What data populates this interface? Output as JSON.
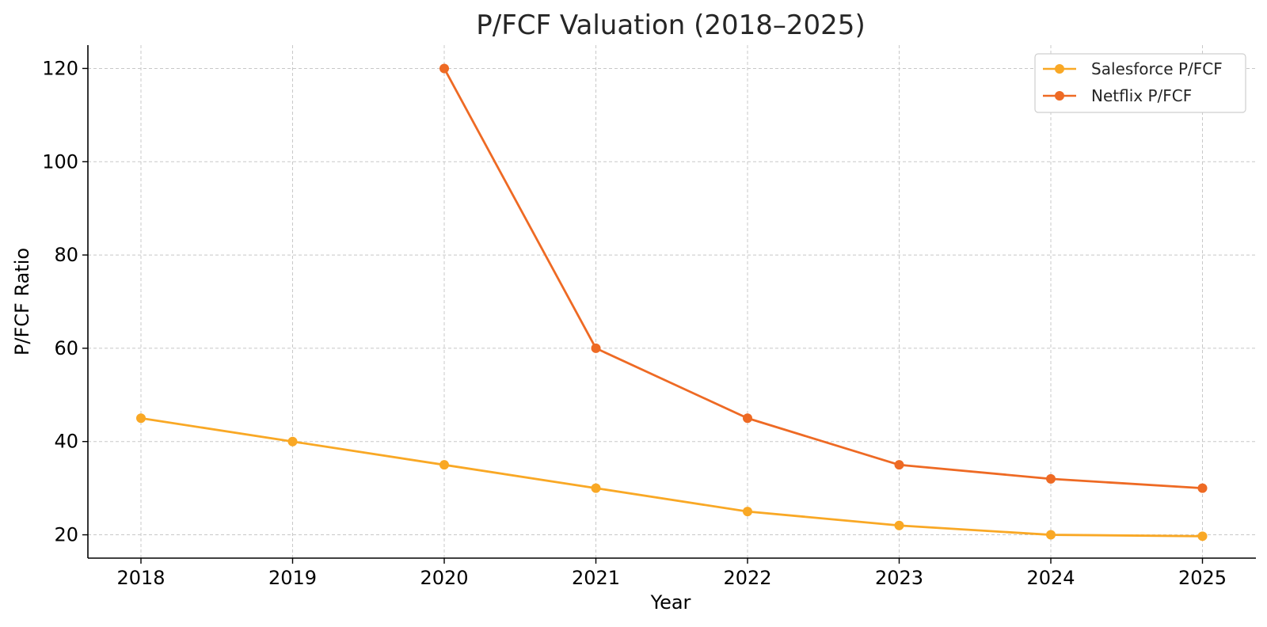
{
  "chart_data": {
    "type": "line",
    "title": "P/FCF Valuation (2018–2025)",
    "xlabel": "Year",
    "ylabel": "P/FCF Ratio",
    "x": [
      "2018",
      "2019",
      "2020",
      "2021",
      "2022",
      "2023",
      "2024",
      "2025"
    ],
    "yticks": [
      "20",
      "40",
      "60",
      "80",
      "100",
      "120"
    ],
    "ylim": [
      15,
      125
    ],
    "grid": true,
    "legend_position": "top-right",
    "series": [
      {
        "name": "Salesforce P/FCF",
        "color": "#F9A825",
        "values": [
          45,
          40,
          35,
          30,
          25,
          22,
          20,
          19.7
        ]
      },
      {
        "name": "Netflix P/FCF",
        "color": "#EE6A24",
        "values": [
          null,
          null,
          120,
          60,
          45,
          35,
          32,
          30
        ]
      }
    ]
  }
}
